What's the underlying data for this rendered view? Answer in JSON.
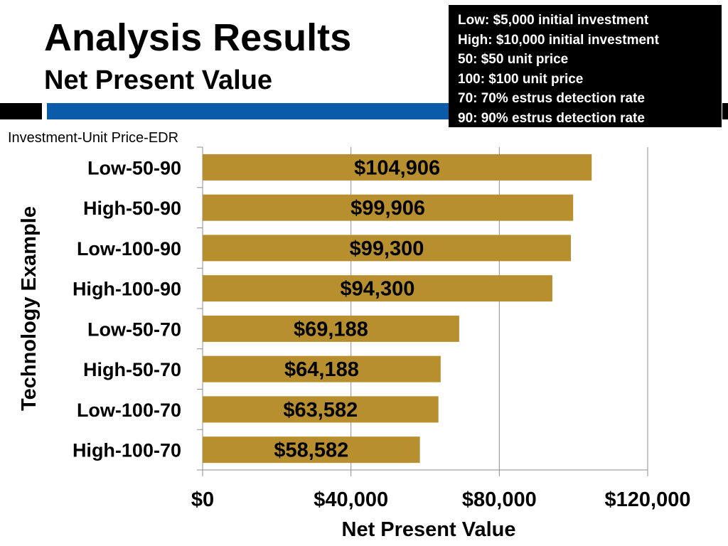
{
  "slide": {
    "title": "Analysis Results",
    "subtitle": "Net Present Value"
  },
  "legend": {
    "lines": [
      "Low: $5,000 initial investment",
      "High: $10,000 initial investment",
      "50: $50 unit price",
      "100: $100 unit price",
      "70: 70% estrus detection rate",
      "90: 90% estrus detection rate"
    ]
  },
  "colors": {
    "bar": "#b78f2e",
    "accent_blue": "#0a5ba8",
    "legend_bg": "#000000"
  },
  "chart_data": {
    "type": "bar",
    "orientation": "horizontal",
    "series_label": "Investment-Unit Price-EDR",
    "categories": [
      "Low-50-90",
      "High-50-90",
      "Low-100-90",
      "High-100-90",
      "Low-50-70",
      "High-50-70",
      "Low-100-70",
      "High-100-70"
    ],
    "values": [
      104906,
      99906,
      99300,
      94300,
      69188,
      64188,
      63582,
      58582
    ],
    "data_labels": [
      "$104,906",
      "$99,906",
      "$99,300",
      "$94,300",
      "$69,188",
      "$64,188",
      "$63,582",
      "$58,582"
    ],
    "xlabel": "Net Present Value",
    "ylabel": "Technology Example",
    "xlim": [
      0,
      120000
    ],
    "xticks": [
      0,
      40000,
      80000,
      120000
    ],
    "xtick_labels": [
      "$0",
      "$40,000",
      "$80,000",
      "$120,000"
    ],
    "grid": true
  }
}
